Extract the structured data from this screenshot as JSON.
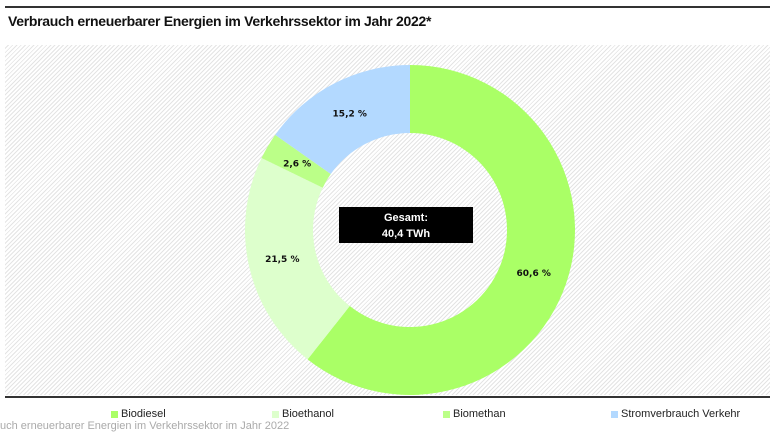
{
  "chart_data": {
    "type": "pie",
    "variant": "donut",
    "title": "Verbrauch erneuerbarer Energien im Verkehrssektor im Jahr 2022*",
    "categories": [
      "Biodiesel",
      "Bioethanol",
      "Biomethan",
      "Stromverbrauch Verkehr"
    ],
    "values": [
      60.6,
      21.5,
      2.6,
      15.2
    ],
    "labels": [
      "60,6 %",
      "21,5 %",
      "2,6 %",
      "15,2 %"
    ],
    "colors": [
      "#aaff66",
      "#ddffcc",
      "#bbff88",
      "#b3d9ff"
    ],
    "center_label": {
      "line1": "Gesamt:",
      "line2": "40,4 TWh"
    },
    "legend_position": "bottom"
  },
  "caption": "uch erneuerbarer Energien im Verkehrssektor im Jahr 2022"
}
